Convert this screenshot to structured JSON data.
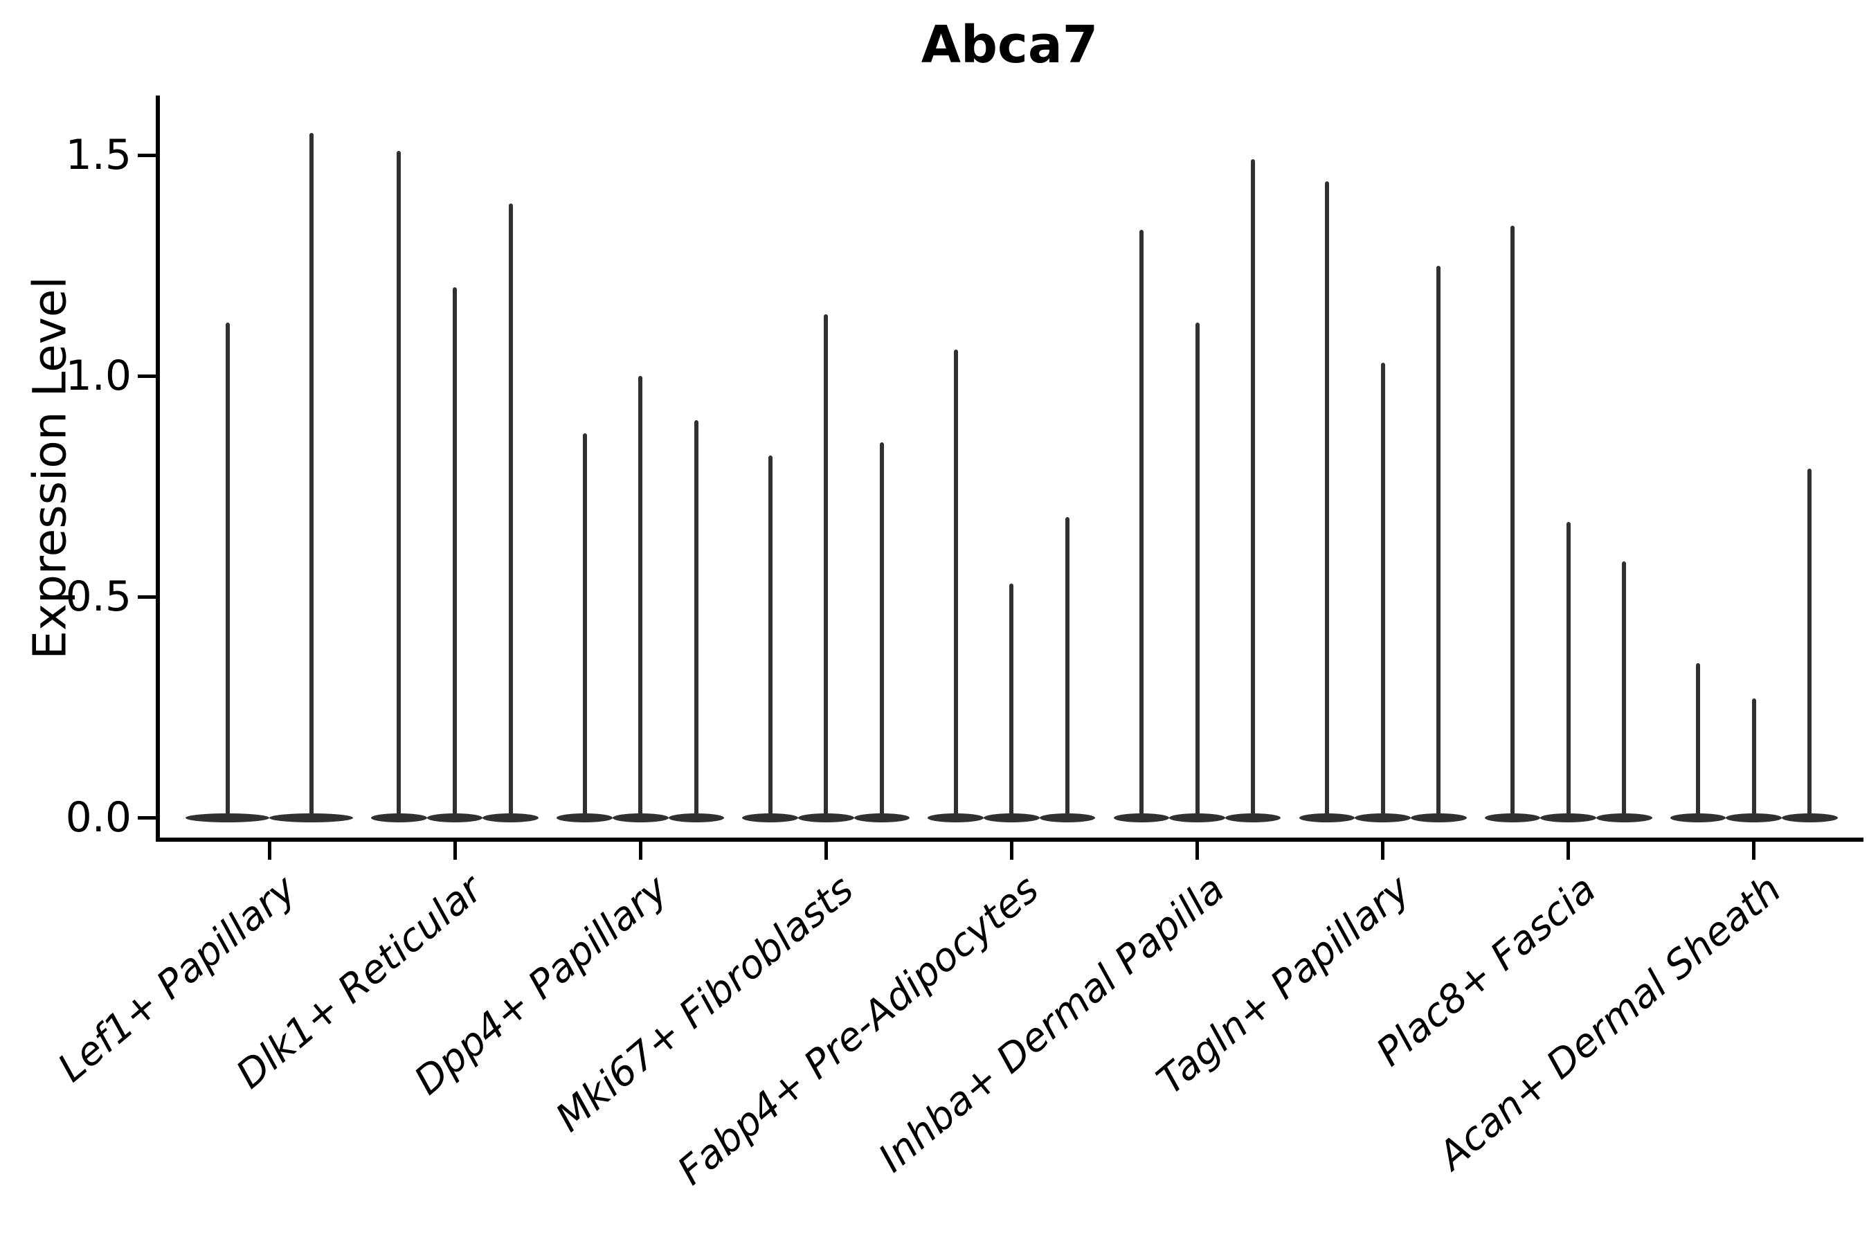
{
  "figure": {
    "title": "Abca7",
    "ylabel": "Expression Level"
  },
  "chart_data": {
    "type": "violin",
    "title": "Abca7",
    "xlabel": "",
    "ylabel": "Expression Level",
    "ylim": [
      0,
      1.63
    ],
    "grid": false,
    "legend": "none",
    "x_tick_rotation": 40,
    "yticks": [
      {
        "value": 0.0,
        "label": "0.0"
      },
      {
        "value": 0.5,
        "label": "0.5"
      },
      {
        "value": 1.0,
        "label": "1.0"
      },
      {
        "value": 1.5,
        "label": "1.5"
      }
    ],
    "categories": [
      "Lef1+ Papillary",
      "Dlk1+ Reticular",
      "Dpp4+ Papillary",
      "Mki67+ Fibroblasts",
      "Fabp4+ Pre-Adipocytes",
      "Inhba+ Dermal Papilla",
      "Tagln+ Papillary",
      "Plac8+ Fascia",
      "Acan+ Dermal Sheath"
    ],
    "series": [
      {
        "category": "Lef1+ Papillary",
        "violin_maxima": [
          1.12,
          1.55
        ]
      },
      {
        "category": "Dlk1+ Reticular",
        "violin_maxima": [
          1.51,
          1.2,
          1.39
        ]
      },
      {
        "category": "Dpp4+ Papillary",
        "violin_maxima": [
          0.87,
          1.0,
          0.9
        ]
      },
      {
        "category": "Mki67+ Fibroblasts",
        "violin_maxima": [
          0.82,
          1.14,
          0.85
        ]
      },
      {
        "category": "Fabp4+ Pre-Adipocytes",
        "violin_maxima": [
          1.06,
          0.53,
          0.68
        ]
      },
      {
        "category": "Inhba+ Dermal Papilla",
        "violin_maxima": [
          1.33,
          1.12,
          1.49
        ]
      },
      {
        "category": "Tagln+ Papillary",
        "violin_maxima": [
          1.44,
          1.03,
          1.25
        ]
      },
      {
        "category": "Plac8+ Fascia",
        "violin_maxima": [
          1.34,
          0.67,
          0.58
        ]
      },
      {
        "category": "Acan+ Dermal Sheath",
        "violin_maxima": [
          0.35,
          0.27,
          0.79
        ]
      }
    ],
    "shape_note": "Each violin is a wide flat ellipse at expression 0 with a thin vertical spike rising to its maximum value",
    "colors": {
      "violin": "#303030",
      "axis": "#000000",
      "text": "#000000",
      "background": "#ffffff"
    }
  }
}
